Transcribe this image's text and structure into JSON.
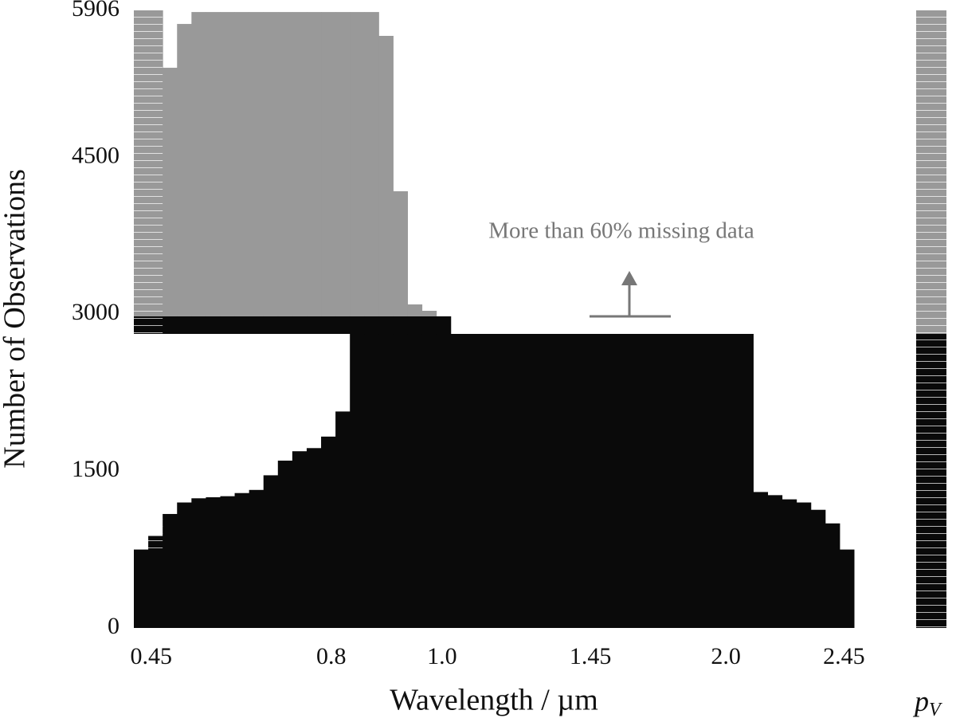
{
  "chart_data": {
    "type": "missing-matrix",
    "ylabel": "Number of Observations",
    "xlabel": "Wavelength / µm",
    "annotation": "More than 60% missing data",
    "colorbar_label": "p",
    "colorbar_label_sub": "V",
    "ylim": [
      0,
      5906
    ],
    "yticks": [
      0,
      1500,
      3000,
      4500,
      5906
    ],
    "xlim": [
      0,
      50
    ],
    "xticks": [
      {
        "value": 1.2,
        "label": "0.45"
      },
      {
        "value": 13.7,
        "label": "0.8"
      },
      {
        "value": 21.4,
        "label": "1.0"
      },
      {
        "value": 31.7,
        "label": "1.45"
      },
      {
        "value": 41.1,
        "label": "2.0"
      },
      {
        "value": 49.3,
        "label": "2.45"
      }
    ],
    "split": 2812,
    "series": [
      {
        "color": "#0a0a0a",
        "values": [
          750,
          880,
          1090,
          1200,
          1240,
          1250,
          1260,
          1290,
          1320,
          1460,
          1600,
          1690,
          1720,
          1830,
          2070,
          2812,
          2812,
          2812,
          2812,
          2812,
          2812,
          2812,
          2812,
          2812,
          2812,
          2812,
          2812,
          2812,
          2812,
          2812,
          2812,
          2812,
          2812,
          2812,
          2812,
          2812,
          2812,
          2812,
          2812,
          2812,
          2812,
          2812,
          2812,
          1300,
          1270,
          1230,
          1200,
          1130,
          1000,
          750
        ]
      },
      {
        "color": "#0a0a0a",
        "values": [
          168,
          168,
          168,
          168,
          168,
          168,
          168,
          168,
          168,
          168,
          168,
          168,
          168,
          168,
          168,
          168,
          168,
          168,
          168,
          168,
          168,
          168,
          null,
          null,
          null,
          null,
          null,
          null,
          null,
          null,
          null,
          null,
          null,
          null,
          null,
          null,
          null,
          null,
          null,
          null,
          null,
          null,
          null,
          null,
          null,
          null,
          null,
          null,
          null,
          null
        ]
      },
      {
        "color": "#999999",
        "values": [
          2926,
          2926,
          2377,
          2796,
          2910,
          2910,
          2910,
          2910,
          2910,
          2910,
          2910,
          2910,
          2910,
          2910,
          2910,
          2910,
          2910,
          2682,
          1196,
          114,
          53,
          null,
          null,
          null,
          null,
          null,
          null,
          null,
          null,
          null,
          null,
          null,
          null,
          null,
          null,
          null,
          null,
          null,
          null,
          null,
          null,
          null,
          null,
          null,
          null,
          null,
          null,
          null,
          null,
          null
        ]
      }
    ]
  }
}
